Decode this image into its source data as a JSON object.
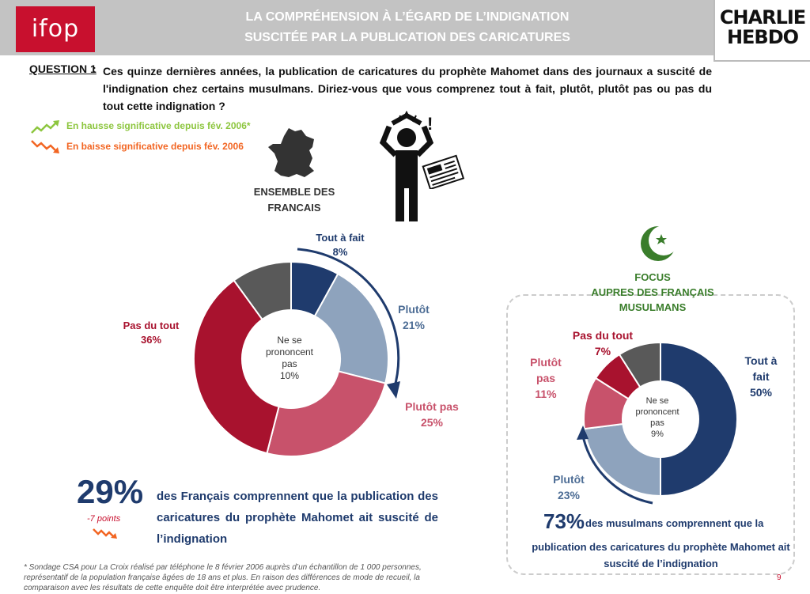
{
  "header": {
    "logo": "ifop",
    "title_line1": "LA COMPRÉHENSION À L’ÉGARD DE L’INDIGNATION",
    "title_line2": "SUSCITÉE PAR LA PUBLICATION DES CARICATURES",
    "brand_line1": "CHARLIE",
    "brand_line2": "HEBDO"
  },
  "question": {
    "label": "QUESTION 1",
    "colon": ":",
    "text": "Ces quinze dernières années, la publication de caricatures du prophète Mahomet dans des journaux a suscité de l'indignation chez certains musulmans. Diriez-vous que vous comprenez tout à fait, plutôt, plutôt pas ou pas du tout cette indignation ?"
  },
  "legend": {
    "up": "En hausse significative depuis fév. 2006*",
    "down": "En baisse significative depuis fév. 2006",
    "up_color": "#8dc63f",
    "down_color": "#f26522"
  },
  "colors": {
    "tout_a_fait": "#1f3b6d",
    "plutot": "#8ea3bd",
    "plutot_pas": "#c8526b",
    "pas_du_tout": "#a8122e",
    "ne_se_prononcent_pas": "#595959",
    "accent_blue": "#1f3b6d",
    "green": "#3a7d2b"
  },
  "chart_data": [
    {
      "type": "pie",
      "title": "ENSEMBLE DES FRANCAIS",
      "categories": [
        "Tout à fait",
        "Plutôt",
        "Plutôt pas",
        "Pas du tout",
        "Ne se prononcent pas"
      ],
      "values": [
        8,
        21,
        25,
        36,
        10
      ],
      "labels": {
        "tout_a_fait_name": "Tout à fait",
        "tout_a_fait_value": "8%",
        "plutot_name": "Plutôt",
        "plutot_value": "21%",
        "plutot_pas_name": "Plutôt pas",
        "plutot_pas_value": "25%",
        "pas_du_tout_name": "Pas du tout",
        "pas_du_tout_value": "36%",
        "nsp_line1": "Ne se",
        "nsp_line2": "prononcent",
        "nsp_line3": "pas",
        "nsp_value": "10%"
      }
    },
    {
      "type": "pie",
      "title": "FOCUS AUPRES DES FRANÇAIS MUSULMANS",
      "categories": [
        "Tout à fait",
        "Plutôt",
        "Plutôt pas",
        "Pas du tout",
        "Ne se prononcent pas"
      ],
      "values": [
        50,
        23,
        11,
        7,
        9
      ],
      "labels": {
        "tout_a_fait_line1": "Tout à",
        "tout_a_fait_line2": "fait",
        "tout_a_fait_value": "50%",
        "plutot_name": "Plutôt",
        "plutot_value": "23%",
        "plutot_pas_line1": "Plutôt",
        "plutot_pas_line2": "pas",
        "plutot_pas_value": "11%",
        "pas_du_tout_name": "Pas du tout",
        "pas_du_tout_value": "7%",
        "nsp_line1": "Ne se",
        "nsp_line2": "prononcent",
        "nsp_line3": "pas",
        "nsp_value": "9%"
      }
    }
  ],
  "ensemble": {
    "title_line1": "ENSEMBLE DES",
    "title_line2": "FRANCAIS",
    "highlight_value": "29%",
    "highlight_text": "des Français comprennent que la publication des caricatures du prophète Mahomet ait suscité de l’indignation",
    "delta": "-7 points"
  },
  "focus": {
    "title_line1": "FOCUS",
    "title_line2": "AUPRES DES FRANÇAIS",
    "title_line3": "MUSULMANS",
    "highlight_value": "73%",
    "highlight_text_line1": "des musulmans comprennent que la",
    "highlight_text_line2": "publication des caricatures du prophète Mahomet ait suscité de l’indignation"
  },
  "footnote": "* Sondage CSA pour La Croix réalisé par téléphone le 8 février 2006 auprès d’un échantillon de 1 000 personnes, représentatif de la population française âgées de 18 ans et plus. En raison des différences de mode de recueil, la comparaison avec les résultats de cette enquête doit être interprétée avec prudence.",
  "page_number": "9",
  "icons": [
    "france-map-icon",
    "indignant-person-icon",
    "newspaper-icon",
    "crescent-star-icon",
    "trend-up-icon",
    "trend-down-icon"
  ]
}
